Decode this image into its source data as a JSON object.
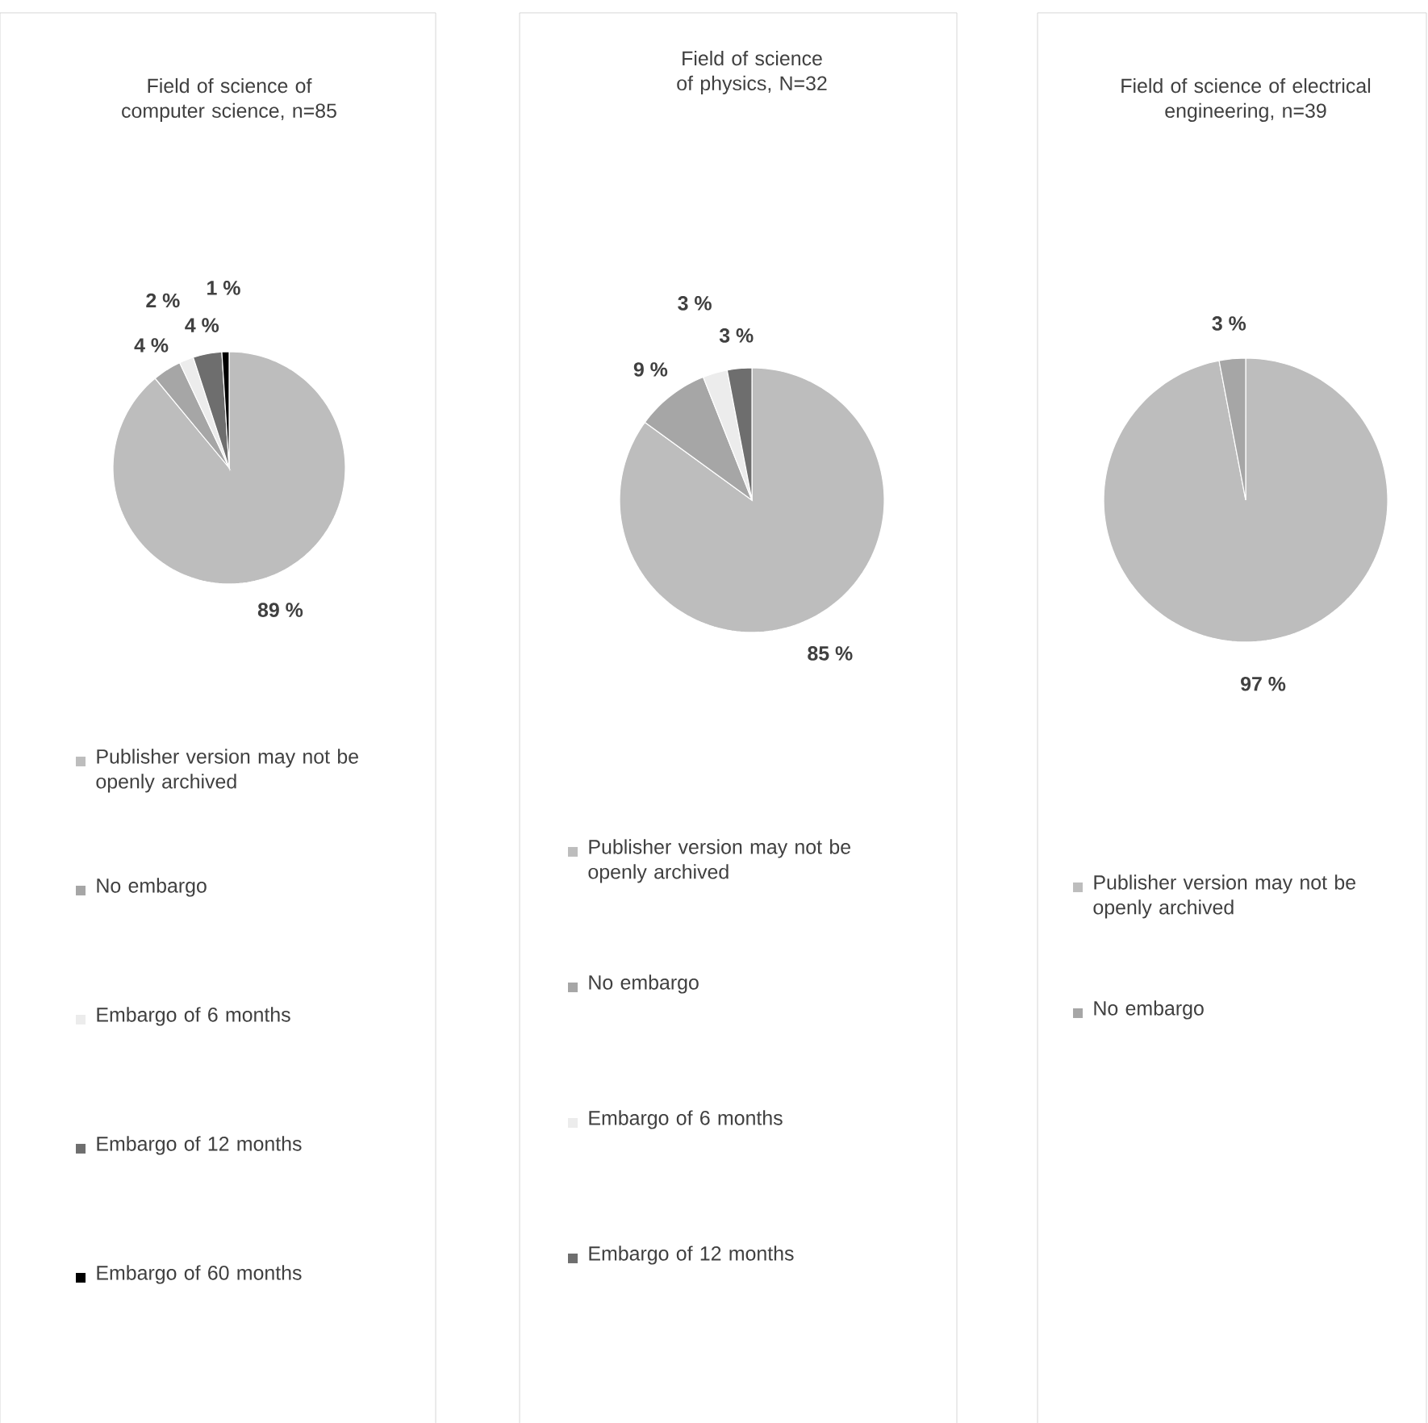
{
  "chart_data": [
    {
      "type": "pie",
      "title": "Field of science of computer science, n=85",
      "categories": [
        "Publisher version may not be openly archived",
        "No embargo",
        "Embargo of 6 months",
        "Embargo of 12 months",
        "Embargo of 60 months"
      ],
      "values": [
        89,
        4,
        2,
        4,
        1
      ],
      "value_labels": [
        "89 %",
        "4 %",
        "2 %",
        "4 %",
        "1 %"
      ],
      "colors": [
        "#bdbdbd",
        "#a6a6a6",
        "#ececec",
        "#6e6e6e",
        "#000000"
      ],
      "legend": "bottom"
    },
    {
      "type": "pie",
      "title": "Field of science of physics, N=32",
      "categories": [
        "Publisher version may not be openly archived",
        "No embargo",
        "Embargo of 6 months",
        "Embargo of 12 months"
      ],
      "values": [
        85,
        9,
        3,
        3
      ],
      "value_labels": [
        "85 %",
        "9 %",
        "3 %",
        "3 %"
      ],
      "colors": [
        "#bdbdbd",
        "#a6a6a6",
        "#ececec",
        "#6e6e6e"
      ],
      "legend": "bottom"
    },
    {
      "type": "pie",
      "title": "Field of science of electrical engineering, n=39",
      "categories": [
        "Publisher version may not be openly archived",
        "No embargo"
      ],
      "values": [
        97,
        3
      ],
      "value_labels": [
        "97 %",
        "3 %"
      ],
      "colors": [
        "#bdbdbd",
        "#a6a6a6"
      ],
      "legend": "bottom"
    }
  ]
}
